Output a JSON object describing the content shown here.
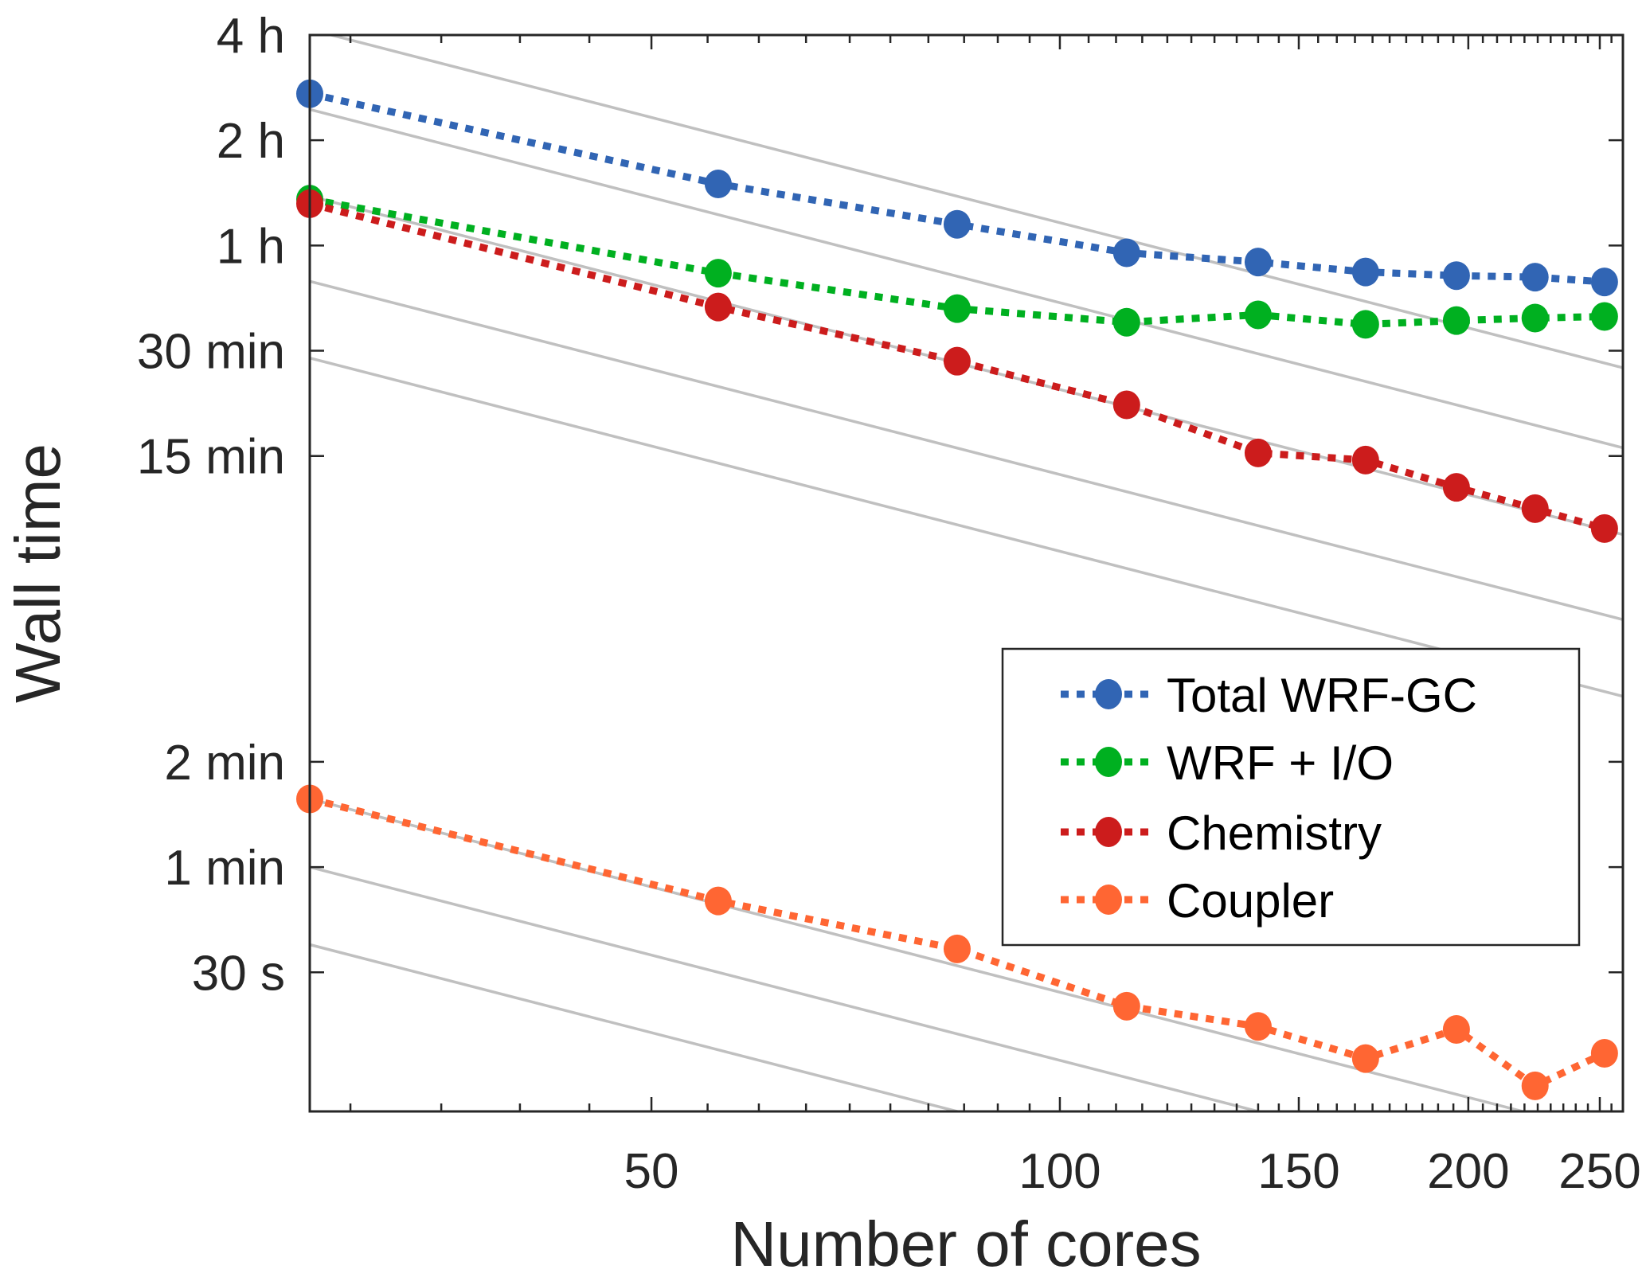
{
  "chart_data": {
    "type": "line",
    "title": "",
    "xlabel": "Number of cores",
    "ylabel": "Wall time",
    "x_scale": "log",
    "y_scale": "log",
    "x": [
      28,
      56,
      84,
      112,
      140,
      168,
      196,
      224,
      252
    ],
    "xlim": [
      28,
      260
    ],
    "ylim_seconds": [
      12,
      14400
    ],
    "y_unit": "seconds",
    "x_ticks": [
      {
        "value": 50,
        "label": "50"
      },
      {
        "value": 100,
        "label": "100"
      },
      {
        "value": 150,
        "label": "150"
      },
      {
        "value": 200,
        "label": "200"
      },
      {
        "value": 250,
        "label": "250"
      }
    ],
    "x_minor_ticks": [
      30,
      35,
      40,
      45,
      55,
      60,
      65,
      70,
      75,
      80,
      85,
      90,
      95,
      105,
      110,
      115,
      120,
      125,
      130,
      135,
      140,
      145,
      155,
      160,
      165,
      170,
      175,
      180,
      185,
      190,
      195,
      205,
      210,
      215,
      220,
      225,
      230,
      235,
      240,
      245,
      255
    ],
    "y_ticks": [
      {
        "seconds": 14400,
        "label": "4 h"
      },
      {
        "seconds": 7200,
        "label": "2 h"
      },
      {
        "seconds": 3600,
        "label": "1 h"
      },
      {
        "seconds": 1800,
        "label": "30 min"
      },
      {
        "seconds": 900,
        "label": "15 min"
      },
      {
        "seconds": 120,
        "label": "2 min"
      },
      {
        "seconds": 60,
        "label": "1 min"
      },
      {
        "seconds": 30,
        "label": "30 s"
      }
    ],
    "series": [
      {
        "name": "Total WRF-GC",
        "color": "#3165b4",
        "values_seconds": [
          9780,
          5400,
          4140,
          3432,
          3228,
          3024,
          2952,
          2922,
          2832
        ]
      },
      {
        "name": "WRF + I/O",
        "color": "#00b020",
        "values_seconds": [
          4884,
          3000,
          2376,
          2172,
          2280,
          2142,
          2196,
          2232,
          2256
        ]
      },
      {
        "name": "Chemistry",
        "color": "#cc1c1c",
        "values_seconds": [
          4740,
          2400,
          1680,
          1260,
          918,
          876,
          732,
          636,
          558
        ]
      },
      {
        "name": "Coupler",
        "color": "#ff6633",
        "values_seconds": [
          94,
          48,
          35,
          24,
          21,
          17,
          20.6,
          14.2,
          17.6
        ]
      }
    ],
    "reference_lines": {
      "description": "ideal linear scaling (time proportional to 1/cores)",
      "color": "#c0c0c0",
      "value_at_28_cores_seconds": [
        14940,
        8820,
        4980,
        2844,
        1716,
        94,
        60,
        36
      ]
    },
    "grid": false,
    "legend": {
      "position": "lower-right",
      "entries": [
        "Total WRF-GC",
        "WRF + I/O",
        "Chemistry",
        "Coupler"
      ]
    }
  }
}
